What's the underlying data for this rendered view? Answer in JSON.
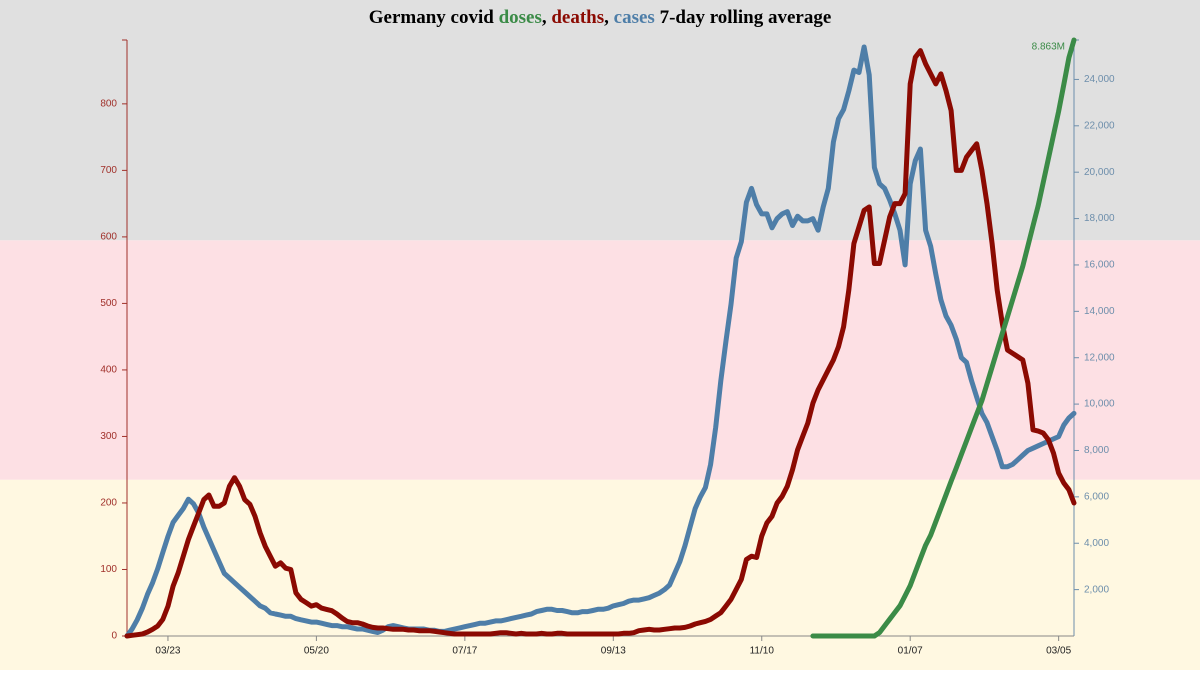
{
  "chart_data": {
    "type": "line",
    "title_prefix": "Germany covid",
    "title_separator": ",",
    "title_suffix": "7-day rolling average",
    "categories": [
      null,
      null,
      null,
      null,
      null,
      null,
      null,
      null,
      "03/23",
      null,
      null,
      null,
      null,
      null,
      null,
      null,
      null,
      null,
      null,
      null,
      null,
      null,
      null,
      null,
      null,
      null,
      null,
      null,
      null,
      null,
      null,
      null,
      null,
      null,
      null,
      null,
      null,
      "05/20",
      null,
      null,
      null,
      null,
      null,
      null,
      null,
      null,
      null,
      null,
      null,
      null,
      null,
      null,
      null,
      null,
      null,
      null,
      null,
      null,
      null,
      null,
      null,
      null,
      null,
      null,
      null,
      null,
      "07/17",
      null,
      null,
      null,
      null,
      null,
      null,
      null,
      null,
      null,
      null,
      null,
      null,
      null,
      null,
      null,
      null,
      null,
      null,
      null,
      null,
      null,
      null,
      null,
      null,
      null,
      null,
      null,
      null,
      "09/13",
      null,
      null,
      null,
      null,
      null,
      null,
      null,
      null,
      null,
      null,
      null,
      null,
      null,
      null,
      null,
      null,
      null,
      null,
      null,
      null,
      null,
      null,
      null,
      null,
      null,
      null,
      null,
      null,
      "11/10",
      null,
      null,
      null,
      null,
      null,
      null,
      null,
      null,
      null,
      null,
      null,
      null,
      null,
      null,
      null,
      null,
      null,
      null,
      null,
      null,
      null,
      null,
      null,
      null,
      null,
      null,
      null,
      null,
      "01/07",
      null,
      null,
      null,
      null,
      null,
      null,
      null,
      null,
      null,
      null,
      null,
      null,
      null,
      null,
      null,
      null,
      null,
      null,
      null,
      null,
      null,
      null,
      null,
      null,
      null,
      null,
      null,
      null,
      "03/05",
      null,
      null,
      null
    ],
    "series": [
      {
        "name": "doses",
        "color": "#3b8b47",
        "axis": "y3",
        "values": [
          null,
          null,
          null,
          null,
          null,
          null,
          null,
          null,
          null,
          null,
          null,
          null,
          null,
          null,
          null,
          null,
          null,
          null,
          null,
          null,
          null,
          null,
          null,
          null,
          null,
          null,
          null,
          null,
          null,
          null,
          null,
          null,
          null,
          null,
          null,
          null,
          null,
          null,
          null,
          null,
          null,
          null,
          null,
          null,
          null,
          null,
          null,
          null,
          null,
          null,
          null,
          null,
          null,
          null,
          null,
          null,
          null,
          null,
          null,
          null,
          null,
          null,
          null,
          null,
          null,
          null,
          null,
          null,
          null,
          null,
          null,
          null,
          null,
          null,
          null,
          null,
          null,
          null,
          null,
          null,
          null,
          null,
          null,
          null,
          null,
          null,
          null,
          null,
          null,
          null,
          null,
          null,
          null,
          null,
          null,
          null,
          null,
          null,
          null,
          null,
          null,
          null,
          null,
          null,
          null,
          null,
          null,
          null,
          null,
          null,
          null,
          null,
          null,
          null,
          null,
          null,
          null,
          null,
          null,
          null,
          null,
          null,
          null,
          null,
          null,
          null,
          null,
          null,
          null,
          null,
          null,
          null,
          null,
          null,
          0,
          0,
          0,
          0,
          0,
          0,
          0,
          0,
          0,
          0,
          0,
          0,
          0,
          0.05,
          0.15,
          0.25,
          0.35,
          0.45,
          0.6,
          0.75,
          0.95,
          1.15,
          1.35,
          1.5,
          1.7,
          1.9,
          2.1,
          2.3,
          2.5,
          2.7,
          2.9,
          3.1,
          3.3,
          3.5,
          3.75,
          4.0,
          4.25,
          4.5,
          4.75,
          5.0,
          5.25,
          5.5,
          5.8,
          6.1,
          6.4,
          6.75,
          7.1,
          7.45,
          7.8,
          8.2,
          8.6,
          8.863
        ],
        "value_labels": [
          null,
          null,
          null,
          null,
          null,
          null,
          null,
          null,
          null,
          null,
          null,
          null,
          null,
          null,
          null,
          null,
          null,
          null,
          null,
          null,
          null,
          null,
          null,
          null,
          null,
          null,
          null,
          null,
          null,
          null,
          null,
          null,
          null,
          null,
          null,
          null,
          null,
          null,
          null,
          null,
          null,
          null,
          null,
          null,
          null,
          null,
          null,
          null,
          null,
          null,
          null,
          null,
          null,
          null,
          null,
          null,
          null,
          null,
          null,
          null,
          null,
          null,
          null,
          null,
          null,
          null,
          null,
          null,
          null,
          null,
          null,
          null,
          null,
          null,
          null,
          null,
          null,
          null,
          null,
          null,
          null,
          null,
          null,
          null,
          null,
          null,
          null,
          null,
          null,
          null,
          null,
          null,
          null,
          null,
          null,
          null,
          null,
          null,
          null,
          null,
          null,
          null,
          null,
          null,
          null,
          null,
          null,
          null,
          null,
          null,
          null,
          null,
          null,
          null,
          null,
          null,
          null,
          null,
          null,
          null,
          null,
          null,
          null,
          null,
          null,
          null,
          null,
          null,
          null,
          null,
          null,
          null,
          null,
          null,
          null,
          null,
          null,
          null,
          null,
          null,
          null,
          null,
          null,
          null,
          null,
          null,
          null,
          null,
          null,
          null,
          null,
          null,
          null,
          null,
          null,
          null,
          null,
          null,
          null,
          null,
          null,
          null,
          null,
          null,
          null,
          null,
          null,
          null,
          null,
          null,
          null,
          null,
          null,
          null,
          null,
          null,
          null,
          null,
          null,
          null,
          null,
          null,
          null,
          null,
          null,
          "8.863M"
        ]
      },
      {
        "name": "deaths",
        "color": "#8b0a02",
        "axis": "y",
        "values": [
          0,
          1,
          2,
          3,
          6,
          10,
          15,
          25,
          45,
          75,
          95,
          120,
          145,
          165,
          185,
          205,
          212,
          195,
          195,
          200,
          225,
          238,
          225,
          205,
          198,
          180,
          155,
          135,
          120,
          105,
          110,
          102,
          100,
          65,
          55,
          50,
          45,
          47,
          42,
          40,
          38,
          33,
          27,
          22,
          20,
          20,
          18,
          15,
          13,
          12,
          12,
          11,
          10,
          10,
          10,
          9,
          9,
          8,
          8,
          8,
          7,
          6,
          5,
          4,
          3,
          3,
          3,
          3,
          3,
          3,
          3,
          3,
          4,
          5,
          5,
          4,
          3,
          4,
          3,
          3,
          3,
          4,
          3,
          3,
          4,
          4,
          3,
          3,
          3,
          3,
          3,
          3,
          3,
          3,
          3,
          3,
          3,
          4,
          4,
          5,
          8,
          9,
          10,
          9,
          9,
          10,
          11,
          12,
          12,
          13,
          15,
          18,
          20,
          22,
          25,
          30,
          35,
          45,
          55,
          70,
          85,
          115,
          120,
          118,
          150,
          170,
          180,
          200,
          210,
          225,
          250,
          280,
          300,
          320,
          350,
          370,
          385,
          400,
          415,
          435,
          465,
          520,
          590,
          615,
          640,
          645,
          560,
          560,
          595,
          630,
          650,
          650,
          665,
          830,
          870,
          880,
          860,
          845,
          830,
          845,
          820,
          790,
          700,
          700,
          720,
          730,
          740,
          700,
          650,
          590,
          520,
          470,
          430,
          425,
          420,
          415,
          380,
          310,
          308,
          305,
          295,
          275,
          245,
          230,
          220,
          200
        ]
      },
      {
        "name": "cases",
        "color": "#4e7ea8",
        "axis": "y2",
        "values": [
          0,
          300,
          700,
          1200,
          1800,
          2300,
          2900,
          3600,
          4300,
          4900,
          5200,
          5500,
          5900,
          5700,
          5300,
          4700,
          4200,
          3700,
          3200,
          2700,
          2500,
          2300,
          2100,
          1900,
          1700,
          1500,
          1300,
          1200,
          1000,
          950,
          900,
          850,
          850,
          750,
          700,
          650,
          600,
          600,
          550,
          500,
          450,
          450,
          400,
          400,
          350,
          300,
          300,
          250,
          200,
          150,
          250,
          400,
          450,
          400,
          350,
          300,
          300,
          300,
          300,
          250,
          250,
          200,
          200,
          250,
          300,
          350,
          400,
          450,
          500,
          550,
          550,
          600,
          650,
          650,
          700,
          750,
          800,
          850,
          900,
          950,
          1050,
          1100,
          1150,
          1150,
          1100,
          1100,
          1050,
          1000,
          1000,
          1050,
          1050,
          1100,
          1150,
          1150,
          1200,
          1300,
          1350,
          1400,
          1500,
          1550,
          1550,
          1600,
          1650,
          1750,
          1850,
          2000,
          2200,
          2700,
          3200,
          3900,
          4700,
          5500,
          6000,
          6400,
          7400,
          9000,
          11000,
          12700,
          14300,
          16300,
          17000,
          18700,
          19300,
          18600,
          18200,
          18200,
          17600,
          18000,
          18200,
          18300,
          17700,
          18100,
          17900,
          17900,
          18000,
          17500,
          18500,
          19300,
          21300,
          22300,
          22700,
          23500,
          24400,
          24300,
          25400,
          24200,
          20200,
          19500,
          19300,
          18800,
          18200,
          17500,
          16000,
          19500,
          20500,
          21000,
          17500,
          16800,
          15600,
          14500,
          13800,
          13400,
          12800,
          12000,
          11800,
          11000,
          10300,
          9600,
          9200,
          8600,
          8000,
          7300,
          7300,
          7400,
          7600,
          7800,
          8000,
          8100,
          8200,
          8300,
          8400,
          8500,
          8600,
          9100,
          9400,
          9600
        ]
      }
    ],
    "ylim": [
      0,
      896
    ],
    "yticks": [
      0,
      100,
      200,
      300,
      400,
      500,
      600,
      700,
      800
    ],
    "y2lim": [
      0,
      25700
    ],
    "y2ticks": [
      {
        "value": 2000,
        "label": "2,000"
      },
      {
        "value": 4000,
        "label": "4,000"
      },
      {
        "value": 6000,
        "label": "6,000"
      },
      {
        "value": 8000,
        "label": "8,000"
      },
      {
        "value": 10000,
        "label": "10,000"
      },
      {
        "value": 12000,
        "label": "12,000"
      },
      {
        "value": 14000,
        "label": "14,000"
      },
      {
        "value": 16000,
        "label": "16,000"
      },
      {
        "value": 18000,
        "label": "18,000"
      },
      {
        "value": 20000,
        "label": "20,000"
      },
      {
        "value": 22000,
        "label": "22,000"
      },
      {
        "value": 24000,
        "label": "24,000"
      }
    ],
    "y3lim": [
      0,
      8.863
    ],
    "y_axis_color": "#a0302a",
    "y2_axis_color": "#6d8eab",
    "bands": [
      {
        "from": 0,
        "to": 235,
        "color": "#fff8e1"
      },
      {
        "from": 235,
        "to": 595,
        "color": "#fde0e4"
      },
      {
        "from": 595,
        "to": 896,
        "color": "#e0e0e0"
      }
    ],
    "grid": false
  }
}
